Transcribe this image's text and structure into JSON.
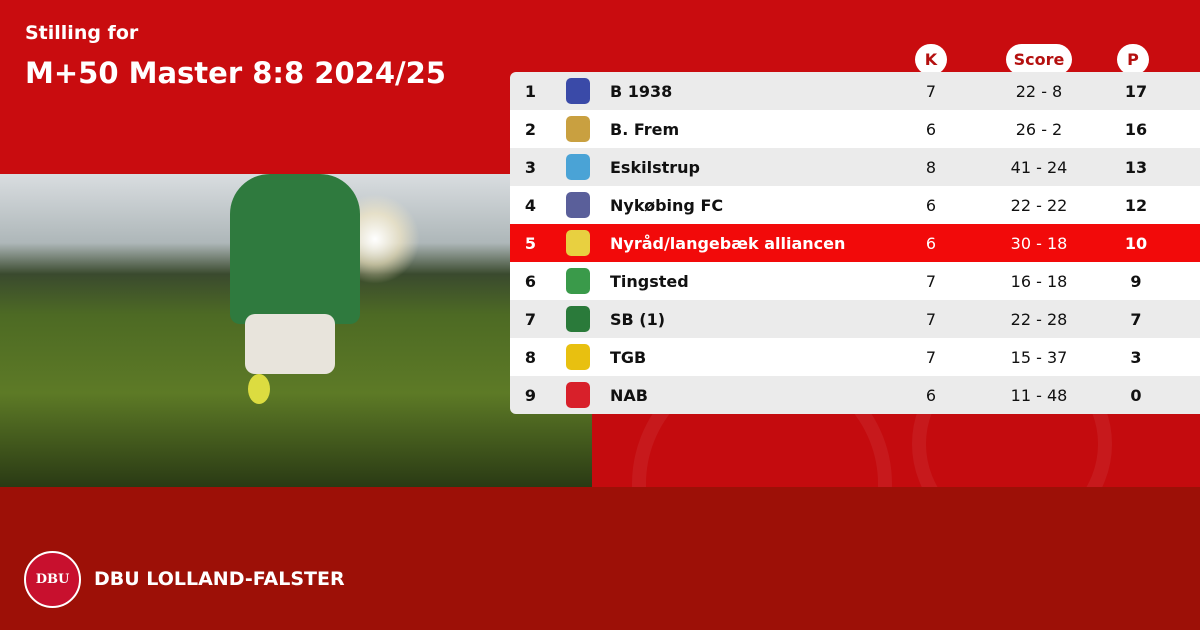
{
  "header": {
    "subtitle": "Stilling for",
    "title": "M+50 Master 8:8 2024/25"
  },
  "columns": {
    "k": "K",
    "score": "Score",
    "p": "P"
  },
  "rows": [
    {
      "rank": "1",
      "team": "B 1938",
      "k": "7",
      "score": "22 - 8",
      "p": "17",
      "logo_color": "#3a4aa8"
    },
    {
      "rank": "2",
      "team": "B. Frem",
      "k": "6",
      "score": "26 - 2",
      "p": "16",
      "logo_color": "#c9a040"
    },
    {
      "rank": "3",
      "team": "Eskilstrup",
      "k": "8",
      "score": "41 - 24",
      "p": "13",
      "logo_color": "#4aa3d6"
    },
    {
      "rank": "4",
      "team": "Nykøbing FC",
      "k": "6",
      "score": "22 - 22",
      "p": "12",
      "logo_color": "#5a5f9a"
    },
    {
      "rank": "5",
      "team": "Nyråd/langebæk alliancen",
      "k": "6",
      "score": "30 - 18",
      "p": "10",
      "logo_color": "#e8d040",
      "highlighted": true
    },
    {
      "rank": "6",
      "team": "Tingsted",
      "k": "7",
      "score": "16 - 18",
      "p": "9",
      "logo_color": "#3a9a4a"
    },
    {
      "rank": "7",
      "team": "SB (1)",
      "k": "7",
      "score": "22 - 28",
      "p": "7",
      "logo_color": "#2a7a3a"
    },
    {
      "rank": "8",
      "team": "TGB",
      "k": "7",
      "score": "15 - 37",
      "p": "3",
      "logo_color": "#e8c010"
    },
    {
      "rank": "9",
      "team": "NAB",
      "k": "6",
      "score": "11 - 48",
      "p": "0",
      "logo_color": "#d8202a"
    }
  ],
  "footer": {
    "brand": "DBU LOLLAND-FALSTER",
    "logo_text": "DBU"
  },
  "colors": {
    "primary": "#c90c0f",
    "footer": "#9d1007",
    "highlight": "#f20a0a",
    "header_text": "#b4100f"
  }
}
